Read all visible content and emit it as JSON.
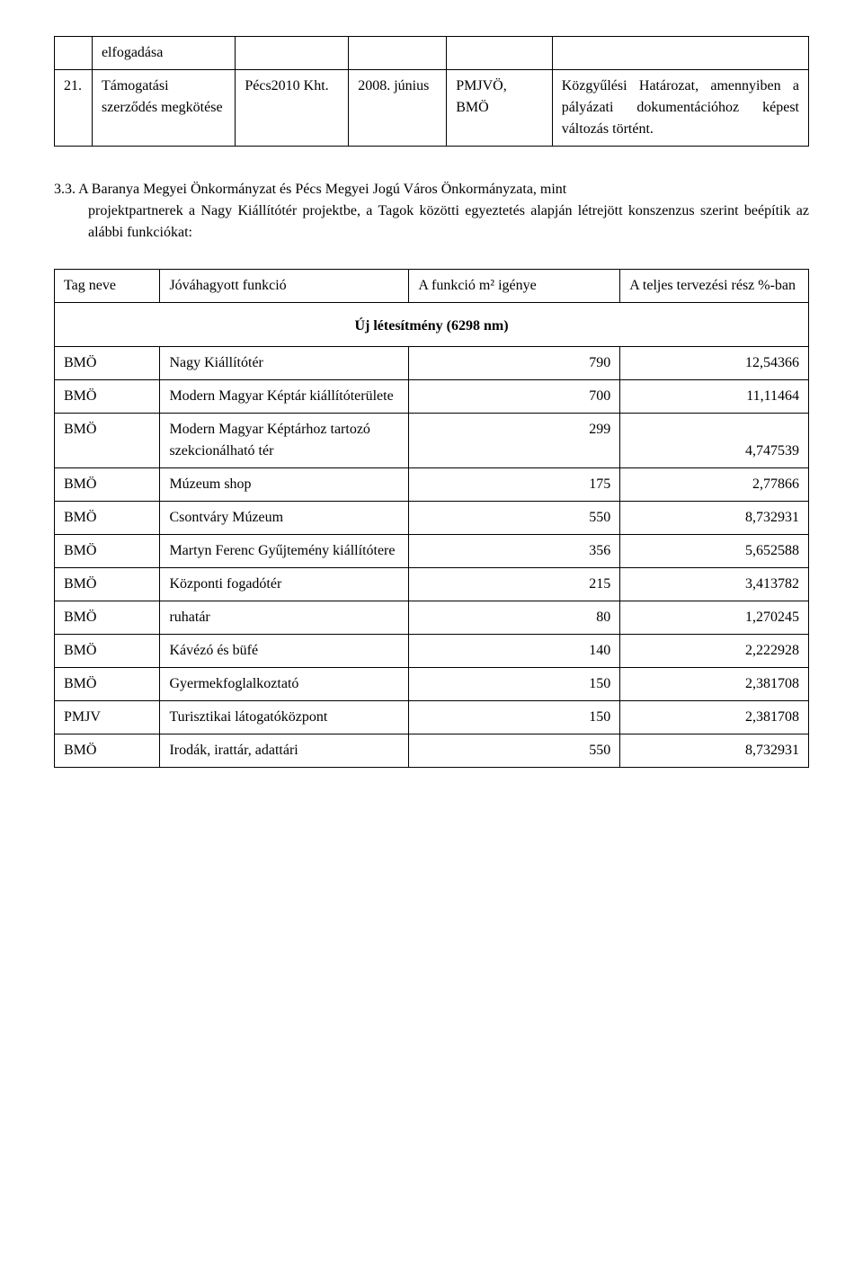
{
  "table1": {
    "rows": [
      {
        "num": "",
        "c1": "elfogadása",
        "c2": "",
        "c3": "",
        "c4": "",
        "c5": ""
      },
      {
        "num": "21.",
        "c1": "Támogatási szerződés megkötése",
        "c2": "Pécs2010 Kht.",
        "c3": "2008. június",
        "c4": "PMJVÖ, BMÖ",
        "c5": "Közgyűlési Határozat, amennyiben a pályázati dokumentációhoz képest változás történt."
      }
    ]
  },
  "paragraph": {
    "lead": "3.3.",
    "text_line1": "A Baranya Megyei Önkormányzat és  Pécs Megyei Jogú Város Önkormányzata, mint",
    "text_rest": "projektpartnerek a Nagy Kiállítótér projektbe, a Tagok közötti egyeztetés alapján létrejött konszenzus szerint beépítik az alábbi funkciókat:"
  },
  "table2": {
    "headers": [
      "Tag neve",
      "Jóváhagyott funkció",
      "A funkció m² igénye",
      "A teljes tervezési rész %-ban"
    ],
    "section_title": "Új létesítmény (6298 nm)",
    "rows": [
      {
        "tag": "BMÖ",
        "func": "Nagy Kiállítótér",
        "m2": "790",
        "pct": "12,54366"
      },
      {
        "tag": "BMÖ",
        "func": "Modern Magyar Képtár kiállítóterülete",
        "m2": "700",
        "pct": "11,11464"
      },
      {
        "tag": "BMÖ",
        "func": "Modern Magyar Képtárhoz tartozó szekcionálható tér",
        "m2": "299",
        "pct": "4,747539"
      },
      {
        "tag": "BMÖ",
        "func": "Múzeum shop",
        "m2": "175",
        "pct": "2,77866"
      },
      {
        "tag": "BMÖ",
        "func": "Csontváry Múzeum",
        "m2": "550",
        "pct": "8,732931"
      },
      {
        "tag": "BMÖ",
        "func": "Martyn Ferenc Gyűjtemény kiállítótere",
        "m2": "356",
        "pct": "5,652588"
      },
      {
        "tag": "BMÖ",
        "func": "Központi fogadótér",
        "m2": "215",
        "pct": "3,413782"
      },
      {
        "tag": "BMÖ",
        "func": "ruhatár",
        "m2": "80",
        "pct": "1,270245"
      },
      {
        "tag": "BMÖ",
        "func": "Kávézó és büfé",
        "m2": "140",
        "pct": "2,222928"
      },
      {
        "tag": "BMÖ",
        "func": "Gyermekfoglalkoztató",
        "m2": "150",
        "pct": "2,381708"
      },
      {
        "tag": "PMJV",
        "func": "Turisztikai látogatóközpont",
        "m2": "150",
        "pct": "2,381708"
      },
      {
        "tag": "BMÖ",
        "func": "Irodák, irattár, adattári",
        "m2": "550",
        "pct": "8,732931"
      }
    ]
  }
}
